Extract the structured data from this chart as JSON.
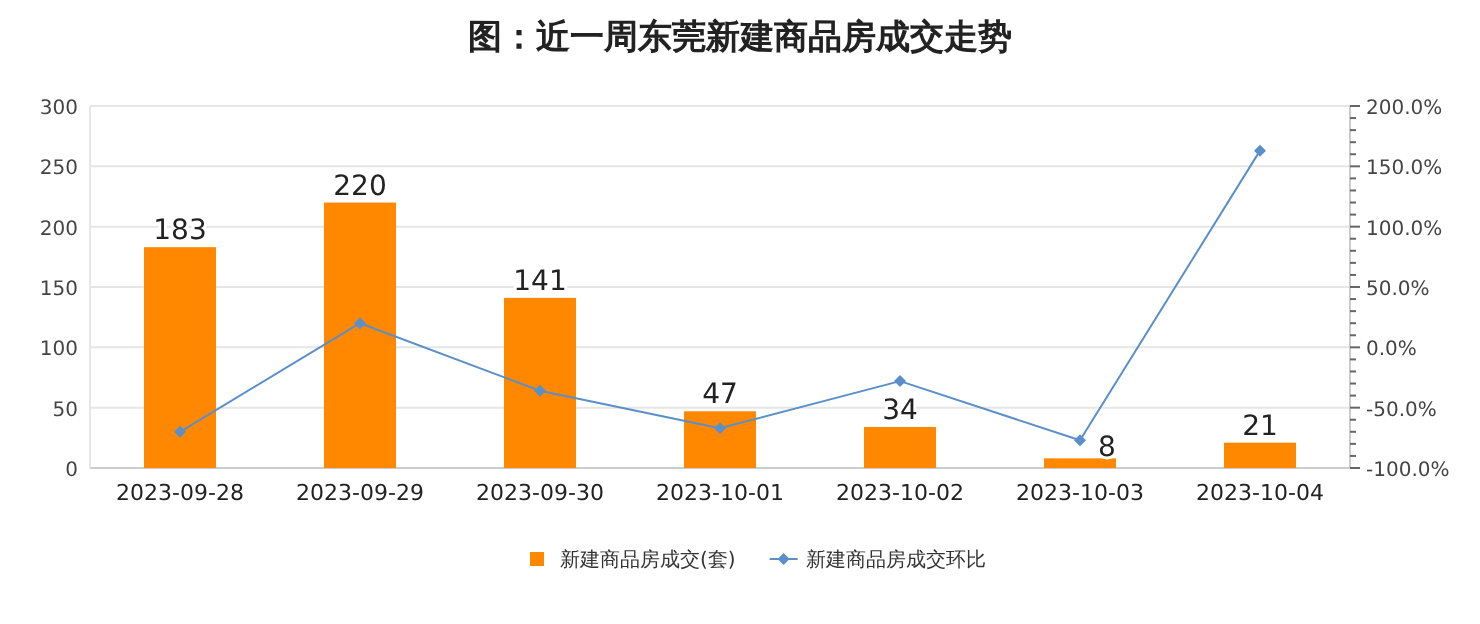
{
  "chart_data": {
    "type": "bar",
    "title": "图：近一周东莞新建商品房成交走势",
    "categories": [
      "2023-09-28",
      "2023-09-29",
      "2023-09-30",
      "2023-10-01",
      "2023-10-02",
      "2023-10-03",
      "2023-10-04"
    ],
    "series": [
      {
        "name": "新建商品房成交(套)",
        "color": "#ff8800",
        "values": [
          183,
          220,
          141,
          47,
          34,
          8,
          21
        ],
        "value_labels": [
          "183",
          "220",
          "141",
          "47",
          "34",
          "8",
          "21"
        ]
      },
      {
        "name": "新建商品房成交环比",
        "type": "line",
        "axis": "y2",
        "color": "#5b8fc9",
        "marker": "diamond",
        "values": [
          -70,
          20,
          -36,
          -67,
          -28,
          -77,
          163
        ]
      }
    ],
    "ylim": [
      0,
      300
    ],
    "yticks": [
      0,
      50,
      100,
      150,
      200,
      250,
      300
    ],
    "y2lim": [
      -100,
      200
    ],
    "y2ticks": [
      {
        "value": -100,
        "label": "-100.0%"
      },
      {
        "value": -90,
        "label": null
      },
      {
        "value": -80,
        "label": null
      },
      {
        "value": -70,
        "label": null
      },
      {
        "value": -60,
        "label": null
      },
      {
        "value": -50,
        "label": "-50.0%"
      },
      {
        "value": -40,
        "label": null
      },
      {
        "value": -30,
        "label": null
      },
      {
        "value": -20,
        "label": null
      },
      {
        "value": -10,
        "label": null
      },
      {
        "value": 0,
        "label": "0.0%"
      },
      {
        "value": 10,
        "label": null
      },
      {
        "value": 20,
        "label": null
      },
      {
        "value": 30,
        "label": null
      },
      {
        "value": 40,
        "label": null
      },
      {
        "value": 50,
        "label": "50.0%"
      },
      {
        "value": 60,
        "label": null
      },
      {
        "value": 70,
        "label": null
      },
      {
        "value": 80,
        "label": null
      },
      {
        "value": 90,
        "label": null
      },
      {
        "value": 100,
        "label": "100.0%"
      },
      {
        "value": 110,
        "label": null
      },
      {
        "value": 120,
        "label": null
      },
      {
        "value": 130,
        "label": null
      },
      {
        "value": 140,
        "label": null
      },
      {
        "value": 150,
        "label": "150.0%"
      },
      {
        "value": 160,
        "label": null
      },
      {
        "value": 170,
        "label": null
      },
      {
        "value": 180,
        "label": null
      },
      {
        "value": 190,
        "label": null
      },
      {
        "value": 200,
        "label": "200.0%"
      }
    ],
    "grid": "y",
    "legend": "bottom"
  }
}
